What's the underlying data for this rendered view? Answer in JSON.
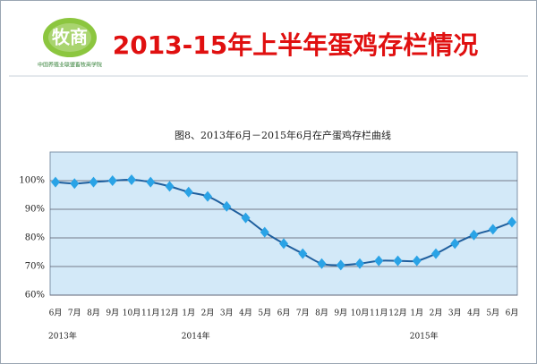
{
  "logo": {
    "text": "牧商",
    "caption": "中国养殖业联盟畜牧商学院"
  },
  "headline": "2013-15年上半年蛋鸡存栏情况",
  "chart_data": {
    "type": "line",
    "title": "图8、2013年6月－2015年6月在产蛋鸡存栏曲线",
    "categories": [
      "6月",
      "7月",
      "8月",
      "9月",
      "10月",
      "11月",
      "12月",
      "1月",
      "2月",
      "3月",
      "4月",
      "5月",
      "6月",
      "7月",
      "8月",
      "9月",
      "10月",
      "11月",
      "12月",
      "1月",
      "2月",
      "3月",
      "4月",
      "5月",
      "6月"
    ],
    "category_years": [
      "2013年",
      null,
      null,
      null,
      null,
      null,
      null,
      "2014年",
      null,
      null,
      null,
      null,
      null,
      null,
      null,
      null,
      null,
      null,
      null,
      "2015年",
      null,
      null,
      null,
      null,
      null
    ],
    "series": [
      {
        "name": "在产蛋鸡存栏",
        "color": "#1f5f9e",
        "marker_color": "#2aa3e6",
        "values": [
          99.5,
          99,
          99.5,
          100,
          100.3,
          99.5,
          98,
          96,
          94.5,
          91,
          87,
          82,
          78,
          74.5,
          71,
          70.5,
          71,
          72,
          72,
          72,
          74.5,
          78,
          81,
          83,
          85.5
        ]
      }
    ],
    "ylim": [
      60,
      110
    ],
    "yticks": [
      {
        "value": 60,
        "label": "60%"
      },
      {
        "value": 70,
        "label": "70%"
      },
      {
        "value": 80,
        "label": "80%"
      },
      {
        "value": 90,
        "label": "90%"
      },
      {
        "value": 100,
        "label": "100%"
      }
    ],
    "grid": true,
    "plot_color": "#d3e9f8"
  }
}
